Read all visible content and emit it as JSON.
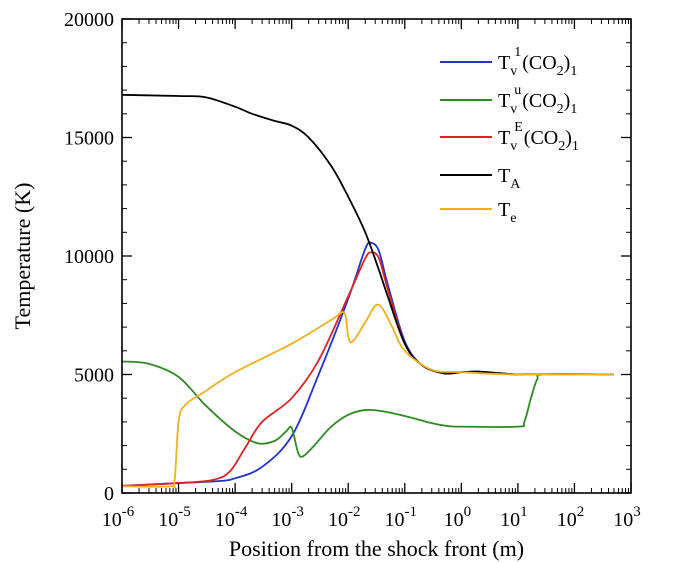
{
  "chart_data": {
    "type": "line",
    "title": "",
    "xlabel": "Position from the shock front (m)",
    "ylabel": "Temperature (K)",
    "xscale": "log",
    "xlim": [
      1e-06,
      1000
    ],
    "ylim": [
      0,
      20000
    ],
    "grid": false,
    "legend_position": "top-right",
    "x_ticks": [
      {
        "value": 1e-06,
        "base": "10",
        "exp": "-6"
      },
      {
        "value": 1e-05,
        "base": "10",
        "exp": "-5"
      },
      {
        "value": 0.0001,
        "base": "10",
        "exp": "-4"
      },
      {
        "value": 0.001,
        "base": "10",
        "exp": "-3"
      },
      {
        "value": 0.01,
        "base": "10",
        "exp": "-2"
      },
      {
        "value": 0.1,
        "base": "10",
        "exp": "-1"
      },
      {
        "value": 1,
        "base": "10",
        "exp": "0"
      },
      {
        "value": 10,
        "base": "10",
        "exp": "1"
      },
      {
        "value": 100,
        "base": "10",
        "exp": "2"
      },
      {
        "value": 1000,
        "base": "10",
        "exp": "3"
      }
    ],
    "y_ticks": [
      {
        "value": 0,
        "label": "0"
      },
      {
        "value": 5000,
        "label": "5000"
      },
      {
        "value": 10000,
        "label": "10000"
      },
      {
        "value": 15000,
        "label": "15000"
      },
      {
        "value": 20000,
        "label": "20000"
      }
    ],
    "series": [
      {
        "id": "tv1",
        "legend": {
          "main": "T",
          "sub": "v",
          "sup": "1",
          "tail": "(CO",
          "sub2": "2",
          "close": ")",
          "sub3": "1"
        },
        "color": "#2233cc",
        "points": [
          [
            1e-06,
            300
          ],
          [
            1e-05,
            420
          ],
          [
            5e-05,
            500
          ],
          [
            0.0001,
            620
          ],
          [
            0.0003,
            1100
          ],
          [
            0.001,
            2400
          ],
          [
            0.003,
            5000
          ],
          [
            0.01,
            8200
          ],
          [
            0.02,
            10300
          ],
          [
            0.026,
            10550
          ],
          [
            0.035,
            10200
          ],
          [
            0.05,
            8800
          ],
          [
            0.1,
            6400
          ],
          [
            0.2,
            5400
          ],
          [
            0.5,
            5050
          ],
          [
            1,
            5100
          ],
          [
            2,
            5120
          ],
          [
            5,
            5050
          ],
          [
            10,
            5000
          ],
          [
            30,
            5000
          ],
          [
            500,
            5000
          ]
        ]
      },
      {
        "id": "tvu",
        "legend": {
          "main": "T",
          "sub": "v",
          "sup": "u",
          "tail": "(CO",
          "sub2": "2",
          "close": ")",
          "sub3": "1"
        },
        "color": "#2e8b22",
        "points": [
          [
            1e-06,
            5550
          ],
          [
            3e-06,
            5450
          ],
          [
            1e-05,
            4900
          ],
          [
            3e-05,
            3700
          ],
          [
            0.0001,
            2600
          ],
          [
            0.00025,
            2100
          ],
          [
            0.0005,
            2200
          ],
          [
            0.0008,
            2600
          ],
          [
            0.001,
            2750
          ],
          [
            0.0013,
            1700
          ],
          [
            0.0016,
            1550
          ],
          [
            0.0025,
            2000
          ],
          [
            0.005,
            2800
          ],
          [
            0.01,
            3300
          ],
          [
            0.02,
            3500
          ],
          [
            0.04,
            3450
          ],
          [
            0.1,
            3250
          ],
          [
            0.3,
            2950
          ],
          [
            0.6,
            2820
          ],
          [
            1,
            2800
          ],
          [
            10,
            2800
          ],
          [
            13,
            3000
          ],
          [
            17,
            4000
          ],
          [
            22,
            4800
          ],
          [
            30,
            5000
          ],
          [
            500,
            5000
          ]
        ]
      },
      {
        "id": "tve",
        "legend": {
          "main": "T",
          "sub": "v",
          "sup": "E",
          "tail": "(CO",
          "sub2": "2",
          "close": ")",
          "sub3": "1"
        },
        "color": "#dd2222",
        "points": [
          [
            1e-06,
            300
          ],
          [
            1e-05,
            420
          ],
          [
            4e-05,
            550
          ],
          [
            8e-05,
            900
          ],
          [
            0.00015,
            1900
          ],
          [
            0.0003,
            3000
          ],
          [
            0.001,
            4000
          ],
          [
            0.003,
            5600
          ],
          [
            0.01,
            8300
          ],
          [
            0.02,
            9900
          ],
          [
            0.026,
            10150
          ],
          [
            0.035,
            9900
          ],
          [
            0.05,
            8600
          ],
          [
            0.1,
            6300
          ],
          [
            0.2,
            5400
          ],
          [
            0.5,
            5050
          ],
          [
            1,
            5100
          ],
          [
            2,
            5120
          ],
          [
            5,
            5050
          ],
          [
            10,
            5000
          ],
          [
            30,
            5000
          ],
          [
            500,
            5000
          ]
        ]
      },
      {
        "id": "ta",
        "legend": {
          "main": "T",
          "sub": "A",
          "sup": "",
          "tail": "",
          "sub2": "",
          "close": "",
          "sub3": ""
        },
        "color": "#000000",
        "points": [
          [
            1e-06,
            16800
          ],
          [
            1e-05,
            16750
          ],
          [
            3e-05,
            16700
          ],
          [
            0.0001,
            16300
          ],
          [
            0.0002,
            16000
          ],
          [
            0.0005,
            15700
          ],
          [
            0.001,
            15500
          ],
          [
            0.002,
            15000
          ],
          [
            0.005,
            13800
          ],
          [
            0.01,
            12500
          ],
          [
            0.02,
            11000
          ],
          [
            0.035,
            9400
          ],
          [
            0.05,
            8300
          ],
          [
            0.1,
            6300
          ],
          [
            0.2,
            5400
          ],
          [
            0.5,
            5050
          ],
          [
            1,
            5100
          ],
          [
            2,
            5120
          ],
          [
            5,
            5050
          ],
          [
            10,
            5000
          ],
          [
            30,
            5000
          ],
          [
            500,
            5000
          ]
        ]
      },
      {
        "id": "te",
        "legend": {
          "main": "T",
          "sub": "e",
          "sup": "",
          "tail": "",
          "sub2": "",
          "close": "",
          "sub3": ""
        },
        "color": "#f0b020",
        "points": [
          [
            1e-06,
            280
          ],
          [
            7e-06,
            280
          ],
          [
            8.5e-06,
            500
          ],
          [
            1e-05,
            3000
          ],
          [
            1.3e-05,
            3700
          ],
          [
            3e-05,
            4300
          ],
          [
            0.0001,
            5100
          ],
          [
            0.001,
            6300
          ],
          [
            0.005,
            7300
          ],
          [
            0.0085,
            7600
          ],
          [
            0.01,
            6600
          ],
          [
            0.012,
            6400
          ],
          [
            0.02,
            7200
          ],
          [
            0.03,
            7900
          ],
          [
            0.04,
            7800
          ],
          [
            0.06,
            7000
          ],
          [
            0.1,
            6000
          ],
          [
            0.3,
            5200
          ],
          [
            1,
            5100
          ],
          [
            10,
            5000
          ],
          [
            500,
            5000
          ]
        ]
      }
    ]
  }
}
